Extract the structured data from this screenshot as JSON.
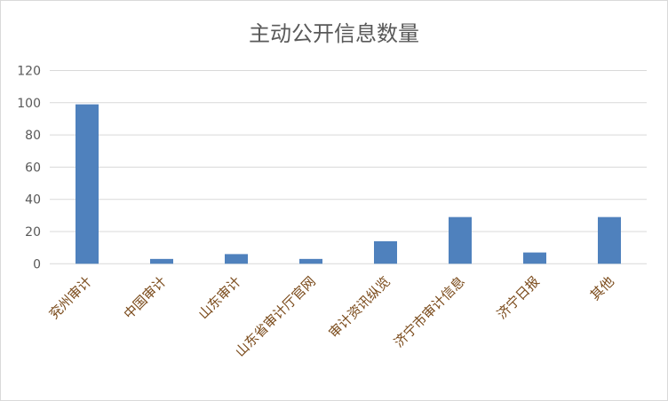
{
  "chart_data": {
    "type": "bar",
    "title": "主动公开信息数量",
    "categories": [
      "兖州审计",
      "中国审计",
      "山东审计",
      "山东省审计厅官网",
      "审计资讯纵览",
      "济宁市审计信息",
      "济宁日报",
      "其他"
    ],
    "values": [
      99,
      3,
      6,
      3,
      14,
      29,
      7,
      29
    ],
    "ylim": [
      0,
      120
    ],
    "yticks": [
      "0",
      "20",
      "40",
      "60",
      "80",
      "100",
      "120"
    ],
    "grid": true,
    "bar_color": "#4f81bd",
    "xlabel": "",
    "ylabel": ""
  }
}
